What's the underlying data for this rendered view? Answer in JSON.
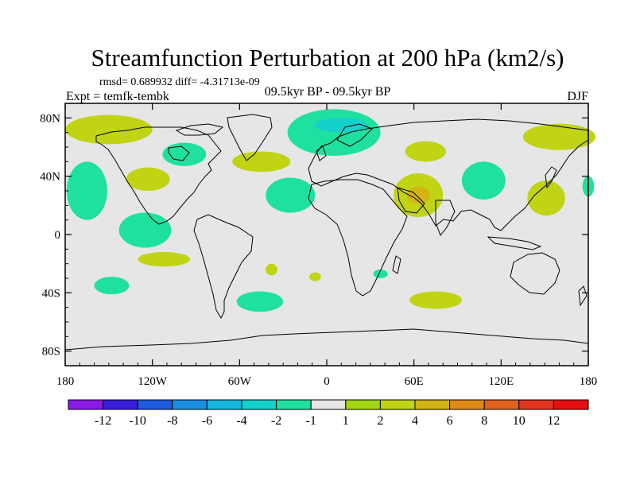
{
  "chart_data": {
    "type": "heatmap",
    "title": "Streamfunction Perturbation at 200 hPa (km2/s)",
    "subtitle_left": "rmsd= 0.689932 diff= -4.31713e-09",
    "expt_label": "Expt = temfk-tembk",
    "center_label": "09.5kyr BP - 09.5kyr BP",
    "season_label": "DJF",
    "x_ticks": [
      "180",
      "120W",
      "60W",
      "0",
      "60E",
      "120E",
      "180"
    ],
    "x_tick_values": [
      -180,
      -120,
      -60,
      0,
      60,
      120,
      180
    ],
    "y_ticks": [
      "80N",
      "40N",
      "0",
      "40S",
      "80S"
    ],
    "y_tick_values": [
      80,
      40,
      0,
      -40,
      -80
    ],
    "xlim": [
      -180,
      180
    ],
    "ylim": [
      -90,
      90
    ],
    "colorbar": {
      "labels": [
        "-12",
        "-10",
        "-8",
        "-6",
        "-4",
        "-2",
        "-1",
        "1",
        "2",
        "4",
        "6",
        "8",
        "10",
        "12"
      ],
      "colors": [
        "#8c1ae6",
        "#3a1fd9",
        "#1e5be0",
        "#1a8fe0",
        "#14b7dd",
        "#14d1cc",
        "#1ee0a0",
        "#e6e6e6",
        "#a5d614",
        "#c0d414",
        "#d4b414",
        "#e08c14",
        "#e0621a",
        "#e0341e",
        "#e60f0f"
      ]
    },
    "anomalies": [
      {
        "lon": -150,
        "lat": 72,
        "rlon": 30,
        "rlat": 10,
        "level": 2
      },
      {
        "lon": 160,
        "lat": 67,
        "rlon": 25,
        "rlat": 9,
        "level": 2
      },
      {
        "lon": 5,
        "lat": 70,
        "rlon": 32,
        "rlat": 16,
        "level": -1
      },
      {
        "lon": 10,
        "lat": 75,
        "rlon": 18,
        "rlat": 5,
        "level": -2
      },
      {
        "lon": -98,
        "lat": 55,
        "rlon": 15,
        "rlat": 8,
        "level": -1
      },
      {
        "lon": -45,
        "lat": 50,
        "rlon": 20,
        "rlat": 7,
        "level": 2
      },
      {
        "lon": 68,
        "lat": 57,
        "rlon": 14,
        "rlat": 7,
        "level": 2
      },
      {
        "lon": -165,
        "lat": 30,
        "rlon": 14,
        "rlat": 20,
        "level": -1
      },
      {
        "lon": -123,
        "lat": 38,
        "rlon": 15,
        "rlat": 8,
        "level": 2
      },
      {
        "lon": -25,
        "lat": 27,
        "rlon": 17,
        "rlat": 12,
        "level": -1
      },
      {
        "lon": 63,
        "lat": 27,
        "rlon": 17,
        "rlat": 15,
        "level": 2
      },
      {
        "lon": 63,
        "lat": 27,
        "rlon": 8,
        "rlat": 6,
        "level": 4
      },
      {
        "lon": 108,
        "lat": 37,
        "rlon": 15,
        "rlat": 13,
        "level": -1
      },
      {
        "lon": 151,
        "lat": 25,
        "rlon": 13,
        "rlat": 12,
        "level": 2
      },
      {
        "lon": 180,
        "lat": 33,
        "rlon": 4,
        "rlat": 7,
        "level": -1
      },
      {
        "lon": -125,
        "lat": 3,
        "rlon": 18,
        "rlat": 12,
        "level": -1
      },
      {
        "lon": -112,
        "lat": -17,
        "rlon": 18,
        "rlat": 5,
        "level": 2
      },
      {
        "lon": -38,
        "lat": -24,
        "rlon": 4,
        "rlat": 4,
        "level": 2
      },
      {
        "lon": -8,
        "lat": -29,
        "rlon": 4,
        "rlat": 3,
        "level": 2
      },
      {
        "lon": 37,
        "lat": -27,
        "rlon": 5,
        "rlat": 3,
        "level": -1
      },
      {
        "lon": -148,
        "lat": -35,
        "rlon": 12,
        "rlat": 6,
        "level": -1
      },
      {
        "lon": -46,
        "lat": -46,
        "rlon": 16,
        "rlat": 7,
        "level": -1
      },
      {
        "lon": 75,
        "lat": -45,
        "rlon": 18,
        "rlat": 6,
        "level": 2
      }
    ]
  }
}
